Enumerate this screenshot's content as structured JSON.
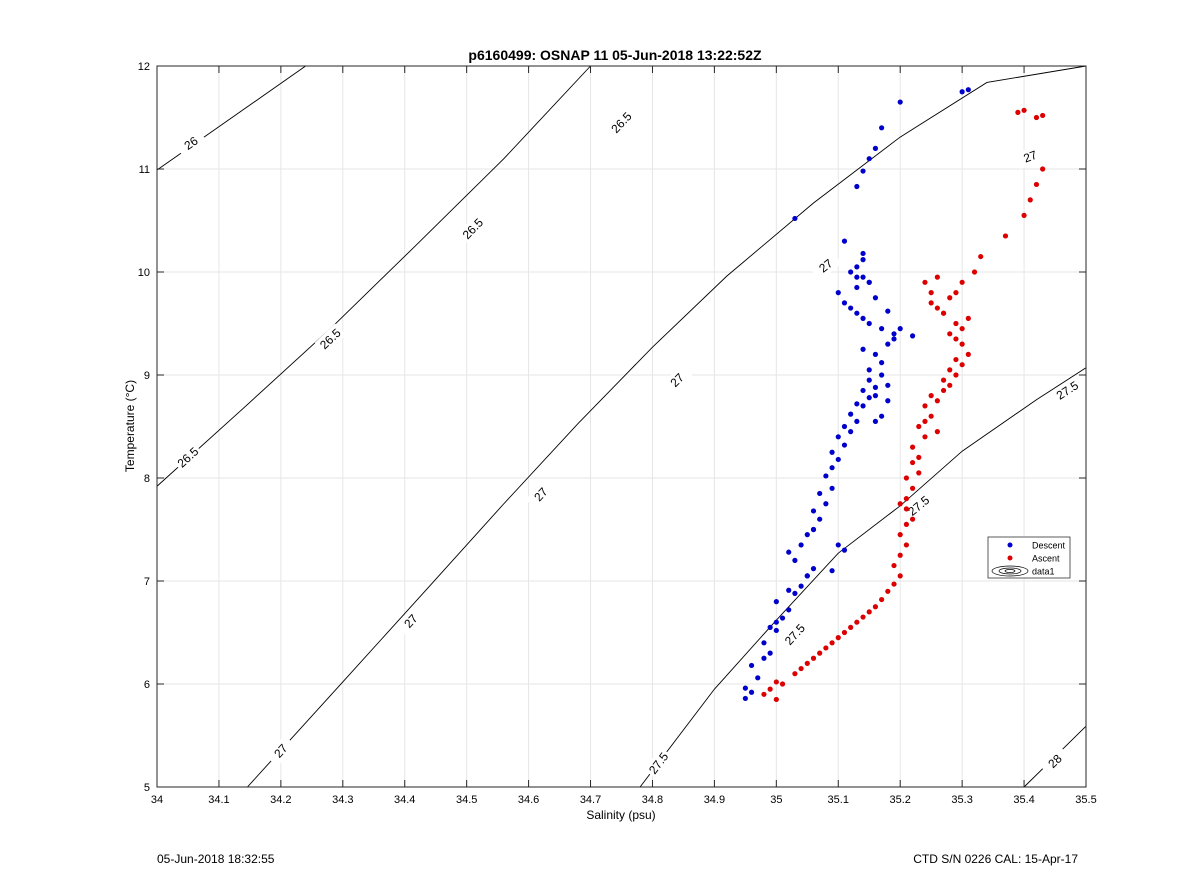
{
  "chart_data": {
    "type": "scatter",
    "title": "p6160499: OSNAP 11 05-Jun-2018 13:22:52Z",
    "xlabel": "Salinity (psu)",
    "ylabel": "Temperature (°C)",
    "xlim": [
      34,
      35.5
    ],
    "ylim": [
      5,
      12
    ],
    "xticks": [
      34,
      34.1,
      34.2,
      34.3,
      34.4,
      34.5,
      34.6,
      34.7,
      34.8,
      34.9,
      35,
      35.1,
      35.2,
      35.3,
      35.4,
      35.5
    ],
    "xtick_labels": [
      "34",
      "34.1",
      "34.2",
      "34.3",
      "34.4",
      "34.5",
      "34.6",
      "34.7",
      "34.8",
      "34.9",
      "35",
      "35.1",
      "35.2",
      "35.3",
      "35.4",
      "35.5"
    ],
    "yticks": [
      5,
      6,
      7,
      8,
      9,
      10,
      11,
      12
    ],
    "ytick_labels": [
      "5",
      "6",
      "7",
      "8",
      "9",
      "10",
      "11",
      "12"
    ],
    "grid": true,
    "legend_position": "right",
    "contours": [
      {
        "label": "26",
        "points": [
          [
            34.0,
            10.99
          ],
          [
            34.24,
            12.0
          ]
        ],
        "label_at": [
          [
            34.055,
            11.25
          ]
        ]
      },
      {
        "label": "26.5",
        "points": [
          [
            34.0,
            7.92
          ],
          [
            34.14,
            8.68
          ],
          [
            34.28,
            9.45
          ],
          [
            34.42,
            10.27
          ],
          [
            34.56,
            11.1
          ],
          [
            34.7,
            12.0
          ]
        ],
        "label_at": [
          [
            34.05,
            8.2
          ],
          [
            34.28,
            9.35
          ],
          [
            34.51,
            10.42
          ],
          [
            34.75,
            11.45
          ]
        ]
      },
      {
        "label": "27",
        "points": [
          [
            34.146,
            5.0
          ],
          [
            34.3,
            6.02
          ],
          [
            34.44,
            6.95
          ],
          [
            34.56,
            7.75
          ],
          [
            34.68,
            8.53
          ],
          [
            34.8,
            9.27
          ],
          [
            34.92,
            9.96
          ],
          [
            35.06,
            10.67
          ],
          [
            35.2,
            11.31
          ],
          [
            35.34,
            11.84
          ],
          [
            35.5,
            12.0
          ]
        ],
        "label_at": [
          [
            34.2,
            5.35
          ],
          [
            34.41,
            6.61
          ],
          [
            34.62,
            7.84
          ],
          [
            34.84,
            8.95
          ],
          [
            35.08,
            10.06
          ],
          [
            35.41,
            11.12
          ]
        ]
      },
      {
        "label": "27.5",
        "points": [
          [
            34.78,
            5.0
          ],
          [
            34.9,
            5.95
          ],
          [
            35.0,
            6.62
          ],
          [
            35.1,
            7.27
          ],
          [
            35.2,
            7.73
          ],
          [
            35.3,
            8.26
          ],
          [
            35.42,
            8.76
          ],
          [
            35.5,
            9.07
          ]
        ],
        "label_at": [
          [
            34.81,
            5.23
          ],
          [
            35.03,
            6.48
          ],
          [
            35.23,
            7.73
          ],
          [
            35.47,
            8.85
          ]
        ]
      },
      {
        "label": "28",
        "points": [
          [
            35.4,
            5.0
          ],
          [
            35.5,
            5.59
          ]
        ],
        "label_at": [
          [
            35.45,
            5.25
          ]
        ]
      }
    ],
    "series": [
      {
        "name": "Descent",
        "color": "#0000cc",
        "x": [
          34.95,
          34.96,
          34.95,
          34.97,
          34.96,
          34.98,
          34.99,
          34.98,
          34.99,
          35.0,
          35.0,
          35.01,
          35.0,
          35.02,
          35.02,
          35.03,
          35.04,
          35.05,
          35.06,
          35.03,
          35.02,
          35.04,
          35.05,
          35.06,
          35.07,
          35.06,
          35.08,
          35.07,
          35.09,
          35.08,
          35.09,
          35.1,
          35.09,
          35.11,
          35.1,
          35.12,
          35.11,
          35.13,
          35.12,
          35.14,
          35.13,
          35.15,
          35.14,
          35.16,
          35.15,
          35.17,
          35.16,
          35.18,
          35.17,
          35.16,
          35.18,
          35.15,
          35.17,
          35.16,
          35.14,
          35.18,
          35.19,
          35.17,
          35.15,
          35.14,
          35.13,
          35.12,
          35.11,
          35.1,
          35.13,
          35.15,
          35.14,
          35.16,
          35.18,
          35.2,
          35.22,
          35.19,
          35.15,
          35.13,
          35.12,
          35.14,
          35.11,
          35.13,
          35.14,
          35.03,
          35.13,
          35.14,
          35.16,
          35.17,
          35.15,
          35.2,
          35.3,
          35.31,
          35.06,
          35.1,
          35.05,
          35.11,
          35.09
        ],
        "y": [
          5.86,
          5.92,
          5.96,
          6.06,
          6.18,
          6.25,
          6.3,
          6.4,
          6.55,
          6.6,
          6.52,
          6.64,
          6.8,
          6.72,
          6.91,
          6.88,
          6.95,
          7.05,
          7.12,
          7.2,
          7.28,
          7.35,
          7.45,
          7.5,
          7.6,
          7.68,
          7.75,
          7.85,
          7.9,
          8.02,
          8.1,
          8.18,
          8.25,
          8.32,
          8.4,
          8.45,
          8.5,
          8.55,
          8.62,
          8.7,
          8.72,
          8.78,
          8.85,
          8.88,
          8.95,
          9.0,
          8.8,
          8.75,
          8.6,
          8.55,
          8.9,
          9.05,
          9.12,
          9.2,
          9.25,
          9.3,
          9.4,
          9.45,
          9.5,
          9.55,
          9.6,
          9.65,
          9.7,
          9.8,
          9.85,
          9.9,
          9.95,
          9.75,
          9.62,
          9.45,
          9.38,
          9.35,
          9.9,
          9.95,
          10.0,
          10.18,
          10.3,
          10.05,
          10.12,
          10.52,
          10.83,
          10.98,
          11.2,
          11.4,
          11.1,
          11.65,
          11.75,
          11.77,
          7.5,
          7.35,
          7.05,
          7.3,
          7.1
        ]
      },
      {
        "name": "Ascent",
        "color": "#dd0000",
        "x": [
          34.98,
          35.0,
          34.99,
          35.0,
          35.01,
          35.03,
          35.04,
          35.05,
          35.06,
          35.07,
          35.08,
          35.09,
          35.1,
          35.11,
          35.12,
          35.13,
          35.14,
          35.15,
          35.16,
          35.17,
          35.18,
          35.19,
          35.2,
          35.19,
          35.2,
          35.21,
          35.2,
          35.21,
          35.22,
          35.21,
          35.2,
          35.21,
          35.22,
          35.21,
          35.23,
          35.22,
          35.23,
          35.22,
          35.24,
          35.23,
          35.24,
          35.25,
          35.24,
          35.26,
          35.25,
          35.27,
          35.28,
          35.27,
          35.29,
          35.28,
          35.3,
          35.29,
          35.31,
          35.3,
          35.29,
          35.28,
          35.3,
          35.29,
          35.31,
          35.27,
          35.26,
          35.25,
          35.28,
          35.29,
          35.3,
          35.32,
          35.33,
          35.37,
          35.4,
          35.41,
          35.42,
          35.43,
          35.39,
          35.4,
          35.42,
          35.43,
          35.25,
          35.24,
          35.26,
          35.27,
          35.26
        ],
        "y": [
          5.9,
          5.85,
          5.95,
          6.02,
          6.0,
          6.1,
          6.15,
          6.2,
          6.25,
          6.3,
          6.35,
          6.4,
          6.45,
          6.5,
          6.55,
          6.6,
          6.65,
          6.7,
          6.75,
          6.82,
          6.9,
          6.97,
          7.05,
          7.15,
          7.25,
          7.35,
          7.45,
          7.55,
          7.6,
          7.7,
          7.75,
          7.8,
          7.9,
          8.0,
          8.05,
          8.15,
          8.2,
          8.3,
          8.4,
          8.5,
          8.55,
          8.6,
          8.7,
          8.75,
          8.8,
          8.85,
          8.9,
          8.95,
          9.0,
          9.05,
          9.1,
          9.15,
          9.2,
          9.3,
          9.35,
          9.4,
          9.45,
          9.5,
          9.55,
          9.6,
          9.65,
          9.7,
          9.75,
          9.8,
          9.9,
          10.0,
          10.15,
          10.35,
          10.55,
          10.7,
          10.85,
          11.0,
          11.55,
          11.57,
          11.5,
          11.52,
          9.8,
          9.9,
          9.95,
          9.6,
          8.45
        ],
        "note": ""
      }
    ],
    "legend": [
      {
        "label": "Descent",
        "kind": "dot",
        "color": "#0000cc"
      },
      {
        "label": "Ascent",
        "kind": "dot",
        "color": "#dd0000"
      },
      {
        "label": "data1",
        "kind": "contour-icon",
        "color": "#000000"
      }
    ]
  },
  "footer": {
    "left": "05-Jun-2018 18:32:55",
    "right": "CTD S/N 0226  CAL: 15-Apr-17"
  }
}
